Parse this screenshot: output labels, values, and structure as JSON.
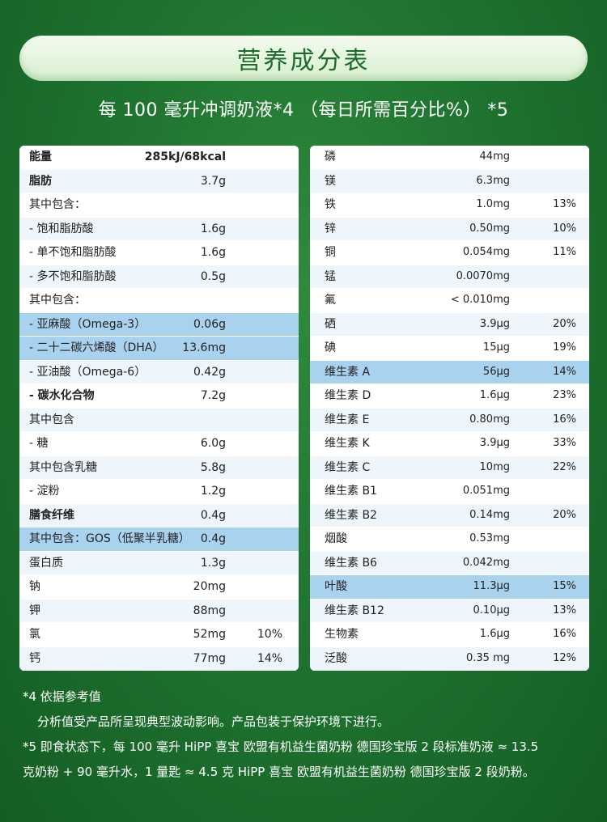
{
  "title": "营养成分表",
  "subtitle": "每 100 毫升冲调奶液*4 （每日所需百分比%） *5",
  "left_rows": [
    {
      "name": "能量",
      "amount": "285kJ/68kcal",
      "pct": "",
      "bold": true
    },
    {
      "name": "脂肪",
      "amount": "3.7g",
      "pct": "",
      "bold": true
    },
    {
      "name": "其中包含：",
      "amount": "",
      "pct": ""
    },
    {
      "name": "- 饱和脂肪酸",
      "amount": "1.6g",
      "pct": ""
    },
    {
      "name": "- 单不饱和脂肪酸",
      "amount": "1.6g",
      "pct": ""
    },
    {
      "name": "- 多不饱和脂肪酸",
      "amount": "0.5g",
      "pct": ""
    },
    {
      "name": "其中包含：",
      "amount": "",
      "pct": ""
    },
    {
      "name": "- 亚麻酸（Omega-3）",
      "amount": "0.06g",
      "pct": "",
      "hl": true
    },
    {
      "name": "- 二十二碳六烯酸（DHA）",
      "amount": "13.6mg",
      "pct": "",
      "hl": true
    },
    {
      "name": "- 亚油酸（Omega-6）",
      "amount": "0.42g",
      "pct": ""
    },
    {
      "name": "- 碳水化合物",
      "amount": "7.2g",
      "pct": "",
      "bold": true
    },
    {
      "name": "其中包含",
      "amount": "",
      "pct": ""
    },
    {
      "name": "- 糖",
      "amount": "6.0g",
      "pct": ""
    },
    {
      "name": "其中包含乳糖",
      "amount": "5.8g",
      "pct": ""
    },
    {
      "name": "- 淀粉",
      "amount": "1.2g",
      "pct": ""
    },
    {
      "name": "膳食纤维",
      "amount": "0.4g",
      "pct": "",
      "bold": true
    },
    {
      "name": "其中包含：GOS（低聚半乳糖）",
      "amount": "0.4g",
      "pct": "",
      "hl": true
    },
    {
      "name": "蛋白质",
      "amount": "1.3g",
      "pct": ""
    },
    {
      "name": "钠",
      "amount": "20mg",
      "pct": ""
    },
    {
      "name": "钾",
      "amount": "88mg",
      "pct": ""
    },
    {
      "name": "氯",
      "amount": "52mg",
      "pct": "10%"
    },
    {
      "name": "钙",
      "amount": "77mg",
      "pct": "14%"
    }
  ],
  "right_rows": [
    {
      "name": "磷",
      "amount": "44mg",
      "pct": ""
    },
    {
      "name": "镁",
      "amount": "6.3mg",
      "pct": ""
    },
    {
      "name": "铁",
      "amount": "1.0mg",
      "pct": "13%"
    },
    {
      "name": "锌",
      "amount": "0.50mg",
      "pct": "10%"
    },
    {
      "name": "铜",
      "amount": "0.054mg",
      "pct": "11%"
    },
    {
      "name": "锰",
      "amount": "0.0070mg",
      "pct": ""
    },
    {
      "name": "氟",
      "amount": "< 0.010mg",
      "pct": ""
    },
    {
      "name": "硒",
      "amount": "3.9μg",
      "pct": "20%"
    },
    {
      "name": "碘",
      "amount": "15μg",
      "pct": "19%"
    },
    {
      "name": "维生素 A",
      "amount": "56μg",
      "pct": "14%",
      "hl": true
    },
    {
      "name": "维生素 D",
      "amount": "1.6μg",
      "pct": "23%"
    },
    {
      "name": "维生素 E",
      "amount": "0.80mg",
      "pct": "16%"
    },
    {
      "name": "维生素 K",
      "amount": "3.9μg",
      "pct": "33%"
    },
    {
      "name": "维生素 C",
      "amount": "10mg",
      "pct": "22%"
    },
    {
      "name": "维生素 B1",
      "amount": "0.051mg",
      "pct": ""
    },
    {
      "name": "维生素 B2",
      "amount": "0.14mg",
      "pct": "20%"
    },
    {
      "name": "烟酸",
      "amount": "0.53mg",
      "pct": ""
    },
    {
      "name": "维生素 B6",
      "amount": "0.042mg",
      "pct": ""
    },
    {
      "name": "叶酸",
      "amount": "11.3μg",
      "pct": "15%",
      "hl": true
    },
    {
      "name": "维生素 B12",
      "amount": "0.10μg",
      "pct": "13%"
    },
    {
      "name": "生物素",
      "amount": "1.6μg",
      "pct": "16%"
    },
    {
      "name": "泛酸",
      "amount": "0.35 mg",
      "pct": "12%"
    }
  ],
  "notes": {
    "n4_title": "*4 依据参考值",
    "n4_body": "分析值受产品所呈现典型波动影响。产品包装于保护环境下进行。",
    "n5_line1": "*5 即食状态下，每 100 毫升 HiPP 喜宝 欧盟有机益生菌奶粉 德国珍宝版 2 段标准奶液 ≈ 13.5",
    "n5_line2": "克奶粉 + 90 毫升水，1 量匙 ≈ 4.5 克 HiPP 喜宝 欧盟有机益生菌奶粉 德国珍宝版 2 段奶粉。"
  }
}
